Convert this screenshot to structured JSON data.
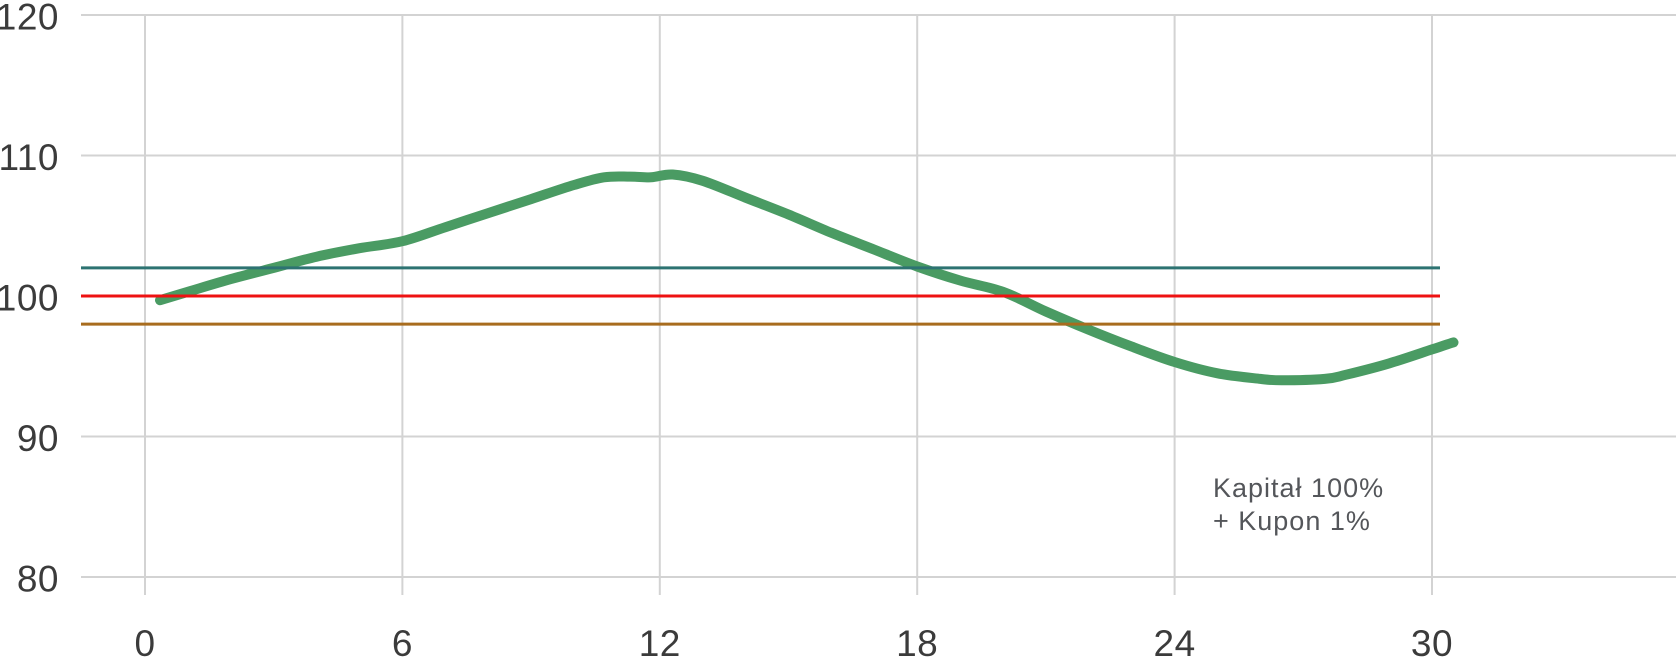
{
  "chart_data": {
    "type": "line",
    "title": "",
    "xlabel": "",
    "ylabel": "",
    "xlim": [
      0,
      30
    ],
    "ylim": [
      80,
      120
    ],
    "grid": true,
    "x_ticks": [
      0,
      6,
      12,
      18,
      24,
      30
    ],
    "y_ticks": [
      80,
      90,
      100,
      110,
      120
    ],
    "series": [
      {
        "name": "product-value-curve",
        "kind": "curve",
        "color": "#4a9b63",
        "stroke_width": 10,
        "points": [
          [
            0.35,
            99.7
          ],
          [
            1,
            100.3
          ],
          [
            2,
            101.2
          ],
          [
            3,
            102.0
          ],
          [
            4,
            102.8
          ],
          [
            5,
            103.4
          ],
          [
            6,
            103.9
          ],
          [
            7,
            104.9
          ],
          [
            8,
            105.9
          ],
          [
            9,
            106.9
          ],
          [
            10,
            107.9
          ],
          [
            10.7,
            108.45
          ],
          [
            11.3,
            108.5
          ],
          [
            11.8,
            108.45
          ],
          [
            12.3,
            108.65
          ],
          [
            13,
            108.2
          ],
          [
            14,
            107.0
          ],
          [
            15,
            105.8
          ],
          [
            16,
            104.5
          ],
          [
            17,
            103.3
          ],
          [
            18,
            102.1
          ],
          [
            19,
            101.1
          ],
          [
            20,
            100.3
          ],
          [
            21,
            98.9
          ],
          [
            22,
            97.6
          ],
          [
            23,
            96.4
          ],
          [
            24,
            95.3
          ],
          [
            25,
            94.5
          ],
          [
            26,
            94.1
          ],
          [
            26.5,
            94.0
          ],
          [
            27.5,
            94.1
          ],
          [
            28,
            94.4
          ],
          [
            29,
            95.2
          ],
          [
            30,
            96.2
          ],
          [
            30.5,
            96.7
          ]
        ]
      },
      {
        "name": "upper-barrier-line",
        "kind": "hline",
        "value": 102,
        "color": "#2d7372",
        "stroke_width": 3
      },
      {
        "name": "capital-level-line",
        "kind": "hline",
        "value": 100,
        "color": "#ee1111",
        "stroke_width": 3
      },
      {
        "name": "lower-barrier-line",
        "kind": "hline",
        "value": 98,
        "color": "#a86c1e",
        "stroke_width": 3
      }
    ],
    "annotation": {
      "line1": "Kapitał 100%",
      "line2": "+ Kupon 1%"
    },
    "legend": null
  },
  "colors": {
    "grid": "#d3d3d3",
    "tick_label": "#3b3b3b",
    "annotation_text": "#54565a",
    "background": "#ffffff"
  }
}
